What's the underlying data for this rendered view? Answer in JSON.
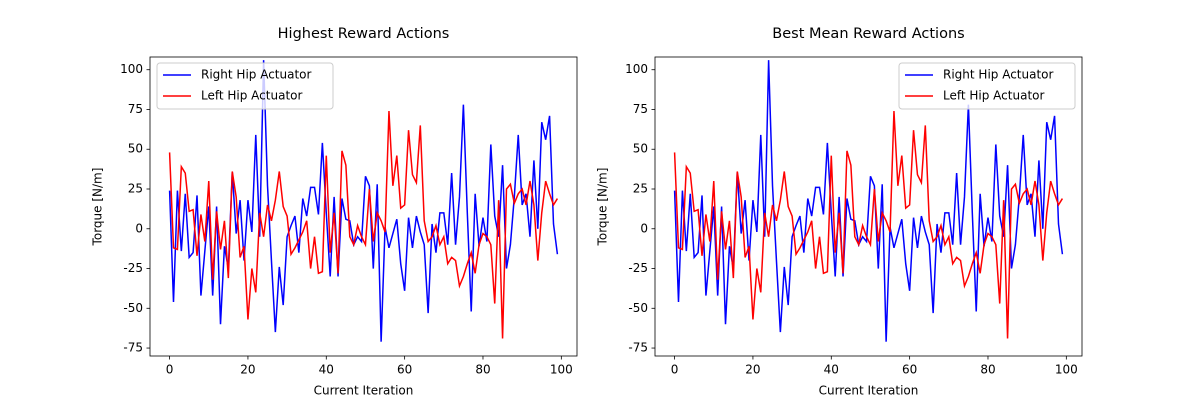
{
  "chart_data": [
    {
      "type": "line",
      "title": "Highest Reward Actions",
      "x_label": "Current Iteration",
      "y_label": "Torque [N/m]",
      "x": [
        0,
        1,
        2,
        3,
        4,
        5,
        6,
        7,
        8,
        9,
        10,
        11,
        12,
        13,
        14,
        15,
        16,
        17,
        18,
        19,
        20,
        21,
        22,
        23,
        24,
        25,
        26,
        27,
        28,
        29,
        30,
        31,
        32,
        33,
        34,
        35,
        36,
        37,
        38,
        39,
        40,
        41,
        42,
        43,
        44,
        45,
        46,
        47,
        48,
        49,
        50,
        51,
        52,
        53,
        54,
        55,
        56,
        57,
        58,
        59,
        60,
        61,
        62,
        63,
        64,
        65,
        66,
        67,
        68,
        69,
        70,
        71,
        72,
        73,
        74,
        75,
        76,
        77,
        78,
        79,
        80,
        81,
        82,
        83,
        84,
        85,
        86,
        87,
        88,
        89,
        90,
        91,
        92,
        93,
        94,
        95,
        96,
        97,
        98,
        99
      ],
      "series": [
        {
          "name": "Right Hip Actuator",
          "color": "#0000ff",
          "values": [
            24,
            -46,
            24,
            -14,
            22,
            -18,
            -15,
            21,
            -42,
            -14,
            14,
            -42,
            14,
            -60,
            -11,
            -25,
            36,
            -3,
            18,
            -20,
            18,
            -2,
            59,
            -5,
            106,
            27,
            -20,
            -65,
            -24,
            -48,
            -5,
            2,
            8,
            -15,
            19,
            8,
            26,
            26,
            9,
            54,
            10,
            -30,
            20,
            -30,
            19,
            6,
            5,
            -10,
            -5,
            -8,
            33,
            27,
            -25,
            28,
            -71,
            1,
            -12,
            -3,
            6,
            -22,
            -39,
            7,
            -12,
            8,
            -2,
            -10,
            -53,
            3,
            -15,
            10,
            10,
            -10,
            35,
            -10,
            20,
            78,
            10,
            -52,
            22,
            -11,
            7,
            -8,
            53,
            8,
            -5,
            40,
            -25,
            -10,
            20,
            59,
            15,
            22,
            -5,
            43,
            0,
            67,
            56,
            71,
            3,
            -16
          ]
        },
        {
          "name": "Left Hip Actuator",
          "color": "#ff0000",
          "values": [
            48,
            -12,
            -13,
            39,
            35,
            11,
            12,
            -17,
            9,
            -8,
            30,
            -32,
            11,
            -13,
            5,
            -31,
            36,
            20,
            -18,
            -11,
            -57,
            -25,
            -40,
            10,
            -5,
            15,
            5,
            18,
            36,
            14,
            8,
            -16,
            -12,
            -7,
            -2,
            5,
            -25,
            -5,
            -28,
            -27,
            46,
            -15,
            10,
            -28,
            49,
            40,
            -5,
            -10,
            2,
            -5,
            -10,
            25,
            -8,
            10,
            5,
            -2,
            74,
            27,
            46,
            13,
            15,
            62,
            34,
            29,
            65,
            5,
            -8,
            -5,
            2,
            -10,
            -5,
            -22,
            -18,
            -20,
            -36,
            -30,
            -22,
            -15,
            -28,
            -10,
            -3,
            -5,
            -10,
            -47,
            18,
            -69,
            25,
            28,
            16,
            22,
            25,
            15,
            30,
            15,
            -20,
            10,
            30,
            22,
            15,
            19
          ]
        }
      ],
      "xlim": [
        -5,
        104
      ],
      "ylim": [
        -80,
        108
      ],
      "xticks": [
        0,
        20,
        40,
        60,
        80,
        100
      ],
      "yticks": [
        -75,
        -50,
        -25,
        0,
        25,
        50,
        75,
        100
      ],
      "legend": "upper left"
    },
    {
      "type": "line",
      "title": "Best Mean Reward Actions",
      "x_label": "Current Iteration",
      "y_label": "Torque [N/m]",
      "x": [
        0,
        1,
        2,
        3,
        4,
        5,
        6,
        7,
        8,
        9,
        10,
        11,
        12,
        13,
        14,
        15,
        16,
        17,
        18,
        19,
        20,
        21,
        22,
        23,
        24,
        25,
        26,
        27,
        28,
        29,
        30,
        31,
        32,
        33,
        34,
        35,
        36,
        37,
        38,
        39,
        40,
        41,
        42,
        43,
        44,
        45,
        46,
        47,
        48,
        49,
        50,
        51,
        52,
        53,
        54,
        55,
        56,
        57,
        58,
        59,
        60,
        61,
        62,
        63,
        64,
        65,
        66,
        67,
        68,
        69,
        70,
        71,
        72,
        73,
        74,
        75,
        76,
        77,
        78,
        79,
        80,
        81,
        82,
        83,
        84,
        85,
        86,
        87,
        88,
        89,
        90,
        91,
        92,
        93,
        94,
        95,
        96,
        97,
        98,
        99
      ],
      "series": [
        {
          "name": "Right Hip Actuator",
          "color": "#0000ff",
          "values": [
            24,
            -46,
            24,
            -14,
            22,
            -18,
            -15,
            21,
            -42,
            -14,
            14,
            -42,
            14,
            -60,
            -11,
            -25,
            36,
            -3,
            18,
            -20,
            18,
            -2,
            59,
            -5,
            106,
            27,
            -20,
            -65,
            -24,
            -48,
            -5,
            2,
            8,
            -15,
            19,
            8,
            26,
            26,
            9,
            54,
            10,
            -30,
            20,
            -30,
            19,
            6,
            5,
            -10,
            -5,
            -8,
            33,
            27,
            -25,
            28,
            -71,
            1,
            -12,
            -3,
            6,
            -22,
            -39,
            7,
            -12,
            8,
            -2,
            -10,
            -53,
            3,
            -15,
            10,
            10,
            -10,
            35,
            -10,
            20,
            78,
            10,
            -52,
            22,
            -11,
            7,
            -8,
            53,
            8,
            -5,
            40,
            -25,
            -10,
            20,
            59,
            15,
            22,
            -5,
            43,
            0,
            67,
            56,
            71,
            3,
            -16
          ]
        },
        {
          "name": "Left Hip Actuator",
          "color": "#ff0000",
          "values": [
            48,
            -12,
            -13,
            39,
            35,
            11,
            12,
            -17,
            9,
            -8,
            30,
            -32,
            11,
            -13,
            5,
            -31,
            36,
            20,
            -18,
            -11,
            -57,
            -25,
            -40,
            10,
            -5,
            15,
            5,
            18,
            36,
            14,
            8,
            -16,
            -12,
            -7,
            -2,
            5,
            -25,
            -5,
            -28,
            -27,
            46,
            -15,
            10,
            -28,
            49,
            40,
            -5,
            -10,
            2,
            -5,
            -10,
            25,
            -8,
            10,
            5,
            -2,
            74,
            27,
            46,
            13,
            15,
            62,
            34,
            29,
            65,
            5,
            -8,
            -5,
            2,
            -10,
            -5,
            -22,
            -18,
            -20,
            -36,
            -30,
            -22,
            -15,
            -28,
            -10,
            -3,
            -5,
            -10,
            -47,
            18,
            -69,
            25,
            28,
            16,
            22,
            25,
            15,
            30,
            15,
            -20,
            10,
            30,
            22,
            15,
            19
          ]
        }
      ],
      "xlim": [
        -5,
        104
      ],
      "ylim": [
        -80,
        108
      ],
      "xticks": [
        0,
        20,
        40,
        60,
        80,
        100
      ],
      "yticks": [
        -75,
        -50,
        -25,
        0,
        25,
        50,
        75,
        100
      ],
      "legend": "upper right"
    }
  ]
}
